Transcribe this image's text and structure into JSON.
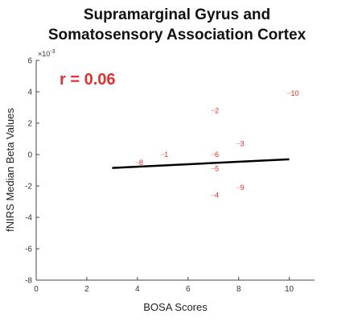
{
  "chart_data": {
    "type": "scatter",
    "title_lines": [
      "Supramarginal Gyrus and",
      "Somatosensory Association Cortex"
    ],
    "xlabel": "BOSA Scores",
    "ylabel": "fNIRS Median Beta Values",
    "y_exponent_label": "×10",
    "y_exponent_power": "-3",
    "annotation": "r = 0.06",
    "annotation_color": "#e03030",
    "point_color": "#e03030",
    "xlim": [
      0,
      11
    ],
    "ylim": [
      -8,
      6
    ],
    "xticks": [
      0,
      2,
      4,
      6,
      8,
      10
    ],
    "yticks": [
      -8,
      -6,
      -4,
      -2,
      0,
      2,
      4,
      6
    ],
    "points": [
      {
        "label": "1",
        "x": 5,
        "y": 0.0
      },
      {
        "label": "2",
        "x": 7,
        "y": 2.8
      },
      {
        "label": "3",
        "x": 8,
        "y": 0.7
      },
      {
        "label": "4",
        "x": 7,
        "y": -2.6
      },
      {
        "label": "5",
        "x": 7,
        "y": -0.9
      },
      {
        "label": "6",
        "x": 7,
        "y": 0.0
      },
      {
        "label": "8",
        "x": 4,
        "y": -0.5
      },
      {
        "label": "9",
        "x": 8,
        "y": -2.1
      },
      {
        "label": "10",
        "x": 10,
        "y": 3.9
      }
    ],
    "fit_line": {
      "x": [
        3,
        10
      ],
      "y": [
        -0.85,
        -0.3
      ]
    }
  }
}
